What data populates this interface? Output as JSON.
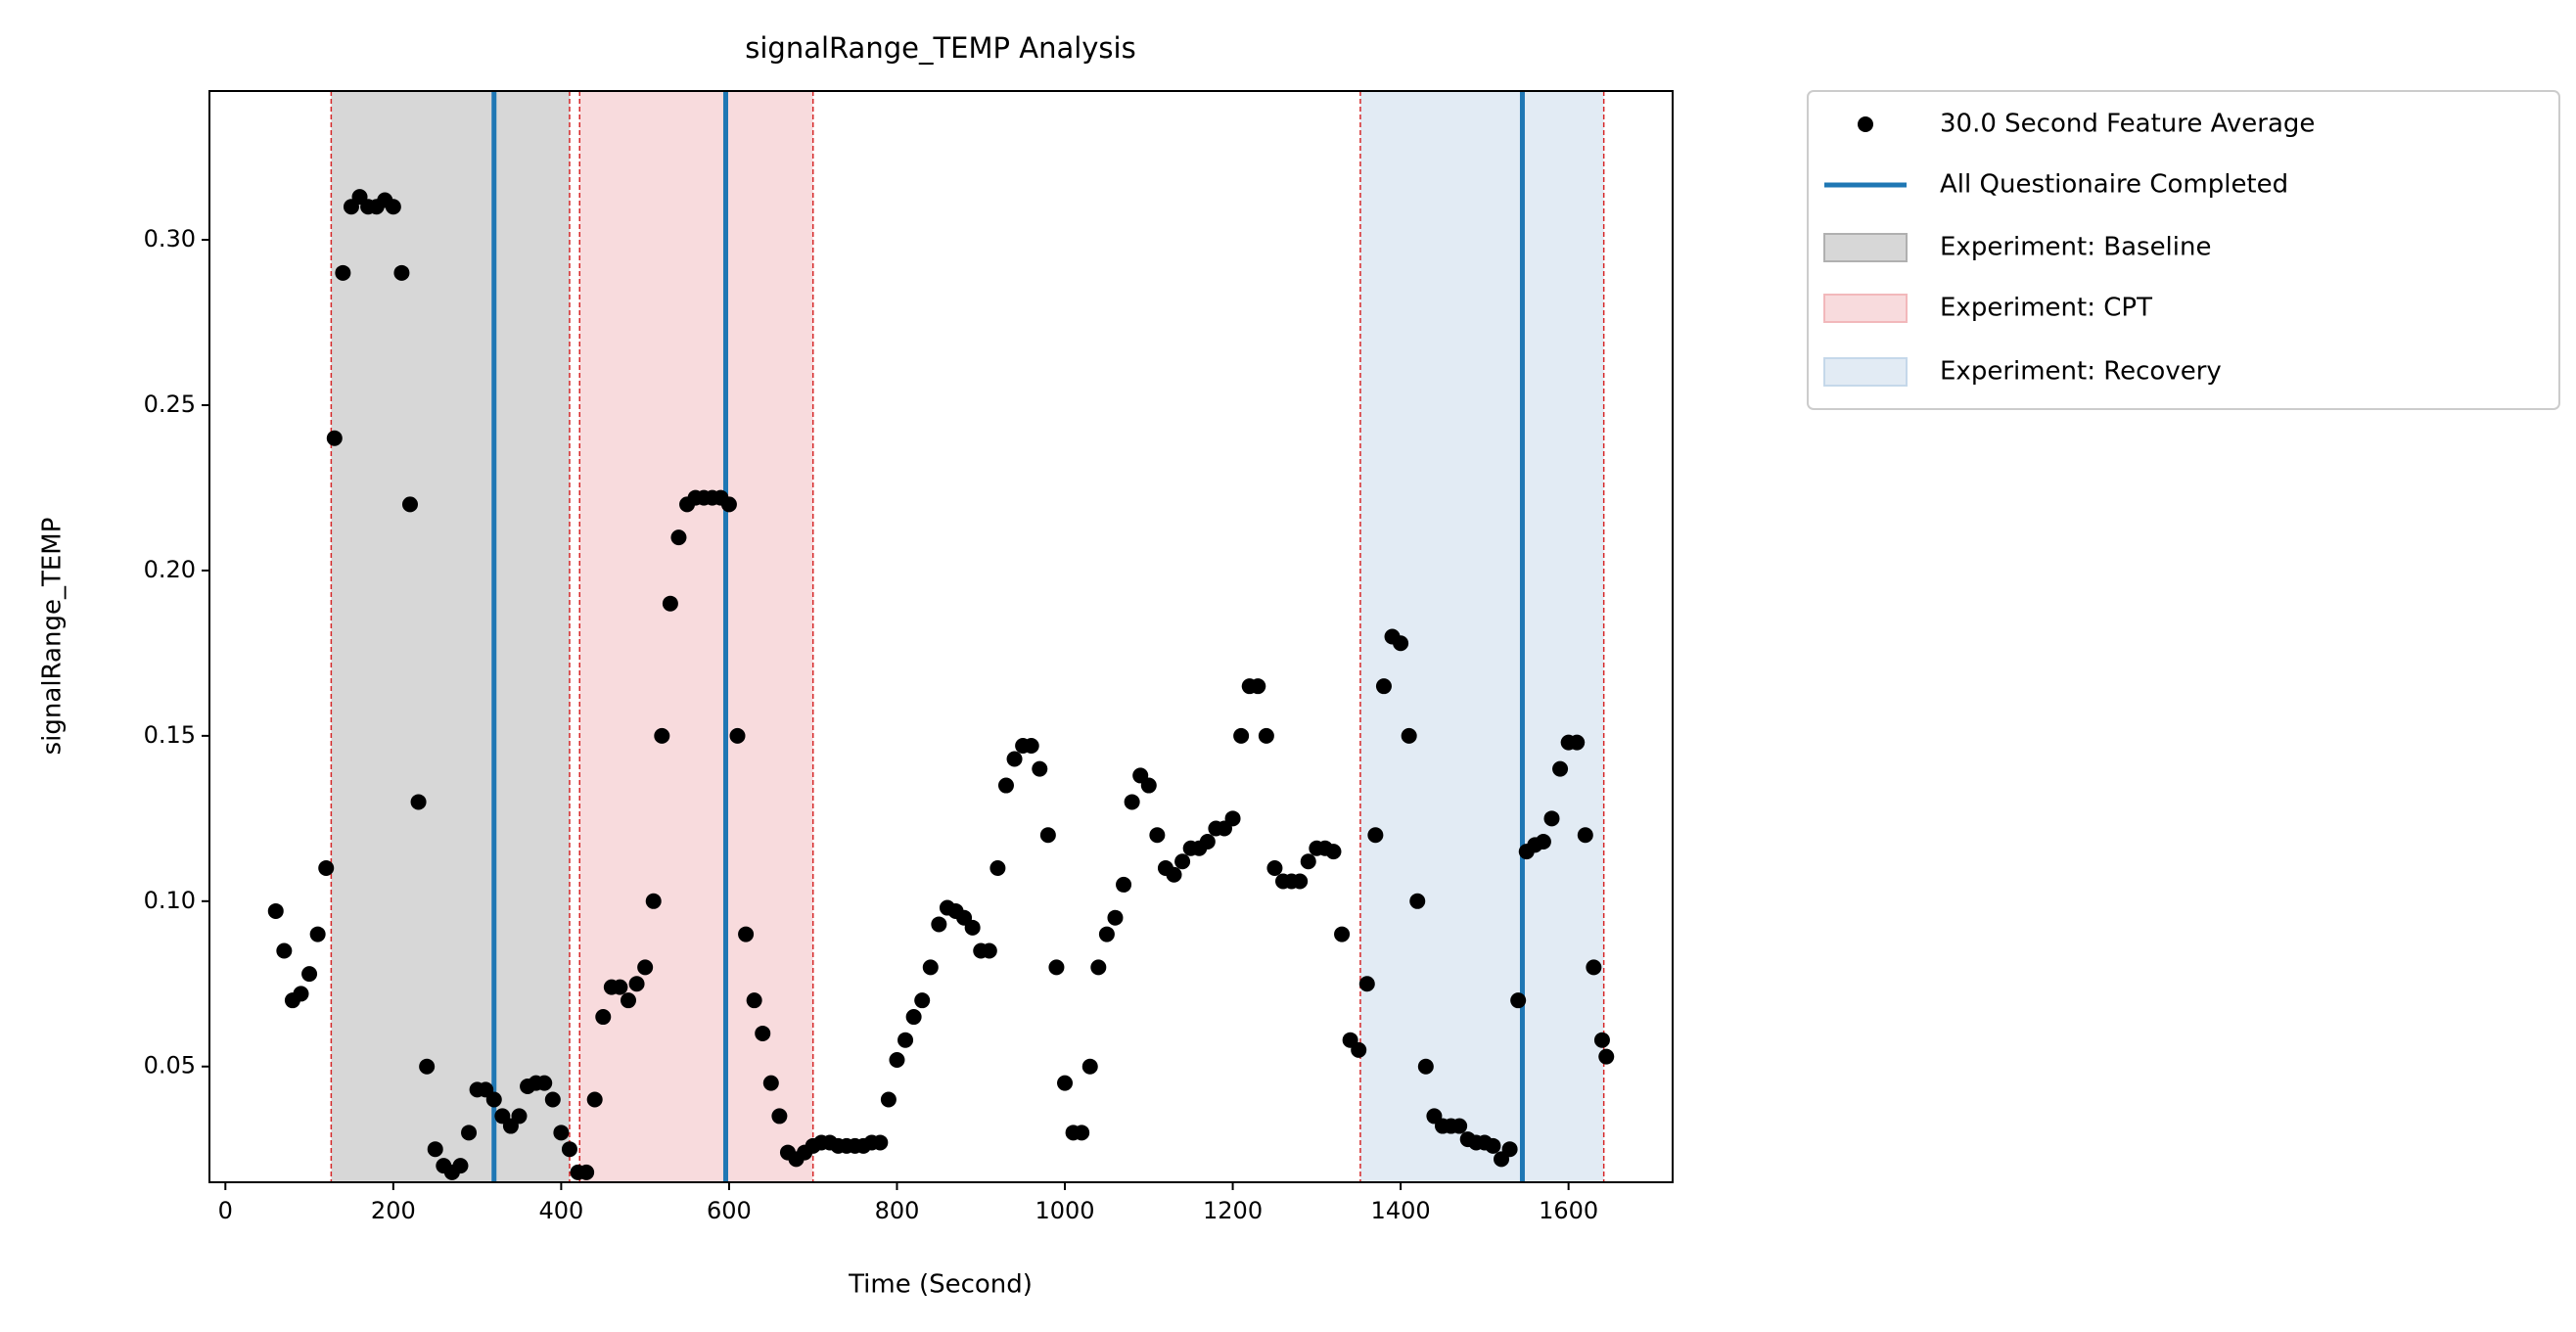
{
  "chart_data": {
    "type": "scatter",
    "title": "signalRange_TEMP Analysis",
    "x_label": "Time (Second)",
    "y_label": "signalRange_TEMP",
    "xlim": [
      -19,
      1724
    ],
    "ylim": [
      0.015,
      0.345
    ],
    "xticks": [
      0,
      200,
      400,
      600,
      800,
      1000,
      1200,
      1400,
      1600
    ],
    "yticks": [
      0.05,
      0.1,
      0.15,
      0.2,
      0.25,
      0.3
    ],
    "legend": "outside-upper-right",
    "span_edge_color": "#d62728",
    "series": [
      {
        "name": "30.0 Second Feature Average",
        "color": "#000000",
        "x": [
          60,
          70,
          80,
          90,
          100,
          110,
          120,
          130,
          140,
          150,
          160,
          170,
          180,
          190,
          200,
          210,
          220,
          230,
          240,
          250,
          260,
          270,
          280,
          290,
          300,
          310,
          320,
          330,
          340,
          350,
          360,
          370,
          380,
          390,
          400,
          410,
          420,
          430,
          440,
          450,
          460,
          470,
          480,
          490,
          500,
          510,
          520,
          530,
          540,
          550,
          560,
          570,
          580,
          590,
          600,
          610,
          620,
          630,
          640,
          650,
          660,
          670,
          680,
          690,
          700,
          710,
          720,
          730,
          740,
          750,
          760,
          770,
          780,
          790,
          800,
          810,
          820,
          830,
          840,
          850,
          860,
          870,
          880,
          890,
          900,
          910,
          920,
          930,
          940,
          950,
          960,
          970,
          980,
          990,
          1000,
          1010,
          1020,
          1030,
          1040,
          1050,
          1060,
          1070,
          1080,
          1090,
          1100,
          1110,
          1120,
          1130,
          1140,
          1150,
          1160,
          1170,
          1180,
          1190,
          1200,
          1210,
          1220,
          1230,
          1240,
          1250,
          1260,
          1270,
          1280,
          1290,
          1300,
          1310,
          1320,
          1330,
          1340,
          1350,
          1360,
          1370,
          1380,
          1390,
          1400,
          1410,
          1420,
          1430,
          1440,
          1450,
          1460,
          1470,
          1480,
          1490,
          1500,
          1510,
          1520,
          1530,
          1540,
          1550,
          1560,
          1570,
          1580,
          1590,
          1600,
          1610,
          1620,
          1630,
          1640,
          1645
        ],
        "values": [
          0.097,
          0.085,
          0.07,
          0.072,
          0.078,
          0.09,
          0.11,
          0.24,
          0.29,
          0.31,
          0.313,
          0.31,
          0.31,
          0.312,
          0.31,
          0.29,
          0.22,
          0.13,
          0.05,
          0.025,
          0.02,
          0.018,
          0.02,
          0.03,
          0.043,
          0.043,
          0.04,
          0.035,
          0.032,
          0.035,
          0.044,
          0.045,
          0.045,
          0.04,
          0.03,
          0.025,
          0.018,
          0.018,
          0.04,
          0.065,
          0.074,
          0.074,
          0.07,
          0.075,
          0.08,
          0.1,
          0.15,
          0.19,
          0.21,
          0.22,
          0.222,
          0.222,
          0.222,
          0.222,
          0.22,
          0.15,
          0.09,
          0.07,
          0.06,
          0.045,
          0.035,
          0.024,
          0.022,
          0.024,
          0.026,
          0.027,
          0.027,
          0.026,
          0.026,
          0.026,
          0.026,
          0.027,
          0.027,
          0.04,
          0.052,
          0.058,
          0.065,
          0.07,
          0.08,
          0.093,
          0.098,
          0.097,
          0.095,
          0.092,
          0.085,
          0.085,
          0.11,
          0.135,
          0.143,
          0.147,
          0.147,
          0.14,
          0.12,
          0.08,
          0.045,
          0.03,
          0.03,
          0.05,
          0.08,
          0.09,
          0.095,
          0.105,
          0.13,
          0.138,
          0.135,
          0.12,
          0.11,
          0.108,
          0.112,
          0.116,
          0.116,
          0.118,
          0.122,
          0.122,
          0.125,
          0.15,
          0.165,
          0.165,
          0.15,
          0.11,
          0.106,
          0.106,
          0.106,
          0.112,
          0.116,
          0.116,
          0.115,
          0.09,
          0.058,
          0.055,
          0.075,
          0.12,
          0.165,
          0.18,
          0.178,
          0.15,
          0.1,
          0.05,
          0.035,
          0.032,
          0.032,
          0.032,
          0.028,
          0.027,
          0.027,
          0.026,
          0.022,
          0.025,
          0.07,
          0.115,
          0.117,
          0.118,
          0.125,
          0.14,
          0.148,
          0.148,
          0.12,
          0.08,
          0.058,
          0.053
        ]
      }
    ],
    "vlines": {
      "name": "All Questionaire Completed",
      "color": "#1f77b4",
      "x": [
        320,
        596,
        1545
      ]
    },
    "spans": [
      {
        "name": "Experiment: Baseline",
        "color": "#b0b0b0",
        "start": 126,
        "end": 410
      },
      {
        "name": "Experiment: CPT",
        "color": "#f2b8bb",
        "start": 422,
        "end": 700
      },
      {
        "name": "Experiment: Recovery",
        "color": "#c5d8ea",
        "start": 1352,
        "end": 1642
      }
    ]
  }
}
